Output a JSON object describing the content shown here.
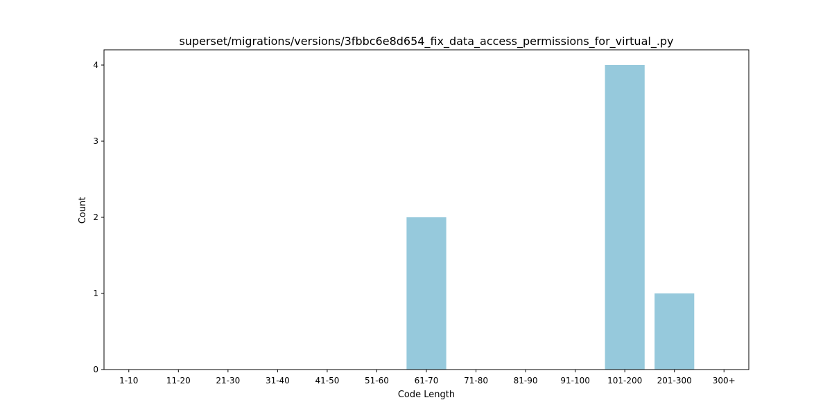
{
  "chart_data": {
    "type": "bar",
    "title": "superset/migrations/versions/3fbbc6e8d654_fix_data_access_permissions_for_virtual_.py",
    "xlabel": "Code Length",
    "ylabel": "Count",
    "categories": [
      "1-10",
      "11-20",
      "21-30",
      "31-40",
      "41-50",
      "51-60",
      "61-70",
      "71-80",
      "81-90",
      "91-100",
      "101-200",
      "201-300",
      "300+"
    ],
    "values": [
      0,
      0,
      0,
      0,
      0,
      0,
      2,
      0,
      0,
      0,
      4,
      1,
      0
    ],
    "ylim": [
      0,
      4.2
    ],
    "yticks": [
      0,
      1,
      2,
      3,
      4
    ],
    "grid": false,
    "colors": {
      "bar": "#96c9dc",
      "axis": "#000000",
      "background": "#ffffff"
    }
  }
}
